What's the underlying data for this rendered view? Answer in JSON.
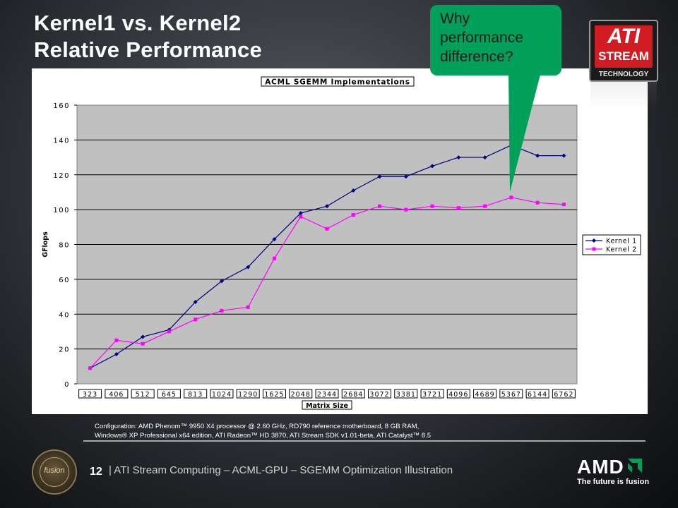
{
  "slide": {
    "title_line1": "Kernel1 vs. Kernel2",
    "title_line2": "Relative Performance",
    "callout_line1": "Why",
    "callout_line2": "performance",
    "callout_line3": "difference?",
    "config_line1": "Configuration: AMD Phenom™ 9950 X4 processor @ 2.60 GHz, RD790 reference motherboard, 8 GB RAM,",
    "config_line2": "Windows® XP Professional x64 edition, ATI Radeon™ HD 3870, ATI Stream SDK v1.01-beta, ATI Catalyst™ 8.5",
    "page_number": "12",
    "footer_text": "| ATI Stream Computing – ACML-GPU – SGEMM Optimization Illustration",
    "logo_ati": "ATI",
    "logo_stream": "STREAM",
    "logo_technology": "TECHNOLOGY",
    "logo_fusion": "fusion",
    "logo_amd": "AMD",
    "logo_amd_tagline": "The future is fusion",
    "colors": {
      "callout": "#00a05a",
      "kernel1": "#000080",
      "kernel2": "#ff00ff",
      "plot_bg": "#c0c0c0",
      "ati_red": "#d01c22"
    }
  },
  "chart_data": {
    "type": "line",
    "title": "ACML SGEMM Implementations",
    "xlabel": "Matrix Size",
    "ylabel": "GFlops",
    "ylim": [
      0,
      160
    ],
    "yticks": [
      "0",
      "20",
      "40",
      "60",
      "80",
      "100",
      "120",
      "140",
      "160"
    ],
    "grid": true,
    "legend_position": "right",
    "categories": [
      "323",
      "406",
      "512",
      "645",
      "813",
      "1024",
      "1290",
      "1625",
      "2048",
      "2344",
      "2684",
      "3072",
      "3381",
      "3721",
      "4096",
      "4689",
      "5367",
      "6144",
      "6762"
    ],
    "series": [
      {
        "name": "Kernel 1",
        "color": "#000080",
        "marker": "diamond",
        "values": [
          9,
          17,
          27,
          31,
          47,
          59,
          67,
          83,
          98,
          102,
          111,
          119,
          119,
          125,
          130,
          130,
          137,
          131,
          131
        ]
      },
      {
        "name": "Kernel 2",
        "color": "#ff00ff",
        "marker": "square",
        "values": [
          9,
          25,
          23,
          30,
          37,
          42,
          44,
          72,
          96,
          89,
          97,
          102,
          100,
          102,
          101,
          102,
          107,
          104,
          103
        ]
      }
    ]
  }
}
